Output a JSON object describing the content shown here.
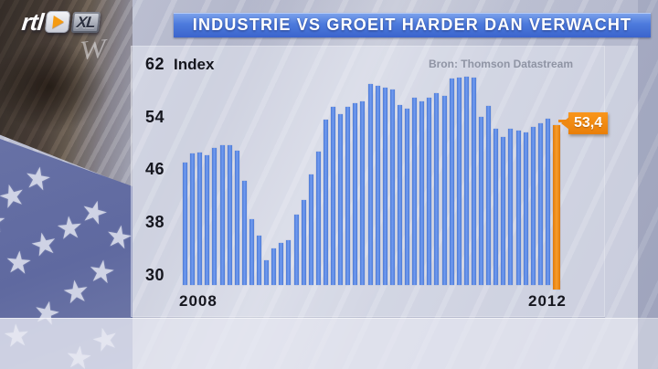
{
  "logo": {
    "rtl_label": "rtl",
    "xl_label": "XL"
  },
  "header": {
    "title": "INDUSTRIE VS GROEIT HARDER DAN VERWACHT",
    "banner_color": "#4d7bdd"
  },
  "chart": {
    "index_label": "Index",
    "source": "Bron: Thomson Datastream",
    "y_ticks": [
      62,
      54,
      46,
      38,
      30
    ],
    "x_ticks": [
      "2008",
      "2012"
    ],
    "callout_value": "53,4",
    "bar_color": "#5b87e0",
    "highlight_color": "#f0881a"
  },
  "chart_data": {
    "type": "bar",
    "title": "INDUSTRIE VS GROEIT HARDER DAN VERWACHT",
    "ylabel": "Index",
    "source": "Bron: Thomson Datastream",
    "x_range": [
      "2008",
      "2012"
    ],
    "ylim": [
      30,
      62
    ],
    "y_ticks": [
      62,
      54,
      46,
      38,
      30
    ],
    "grid": false,
    "legend": false,
    "frequency": "monthly",
    "values": [
      47.0,
      48.4,
      48.5,
      48.1,
      49.3,
      49.6,
      49.7,
      48.8,
      44.2,
      38.4,
      35.9,
      32.2,
      34.0,
      34.8,
      35.3,
      39.1,
      41.3,
      45.2,
      48.7,
      53.6,
      55.5,
      54.4,
      55.5,
      56.0,
      56.3,
      59.0,
      58.7,
      58.4,
      58.1,
      55.7,
      55.2,
      56.9,
      56.3,
      56.9,
      57.6,
      57.1,
      59.8,
      59.9,
      60.1,
      59.9,
      53.9,
      55.6,
      52.1,
      50.9,
      52.1,
      51.9,
      51.6,
      52.5,
      53.0,
      53.7,
      53.4
    ],
    "highlight_last": true,
    "last_value_label": "53,4"
  }
}
